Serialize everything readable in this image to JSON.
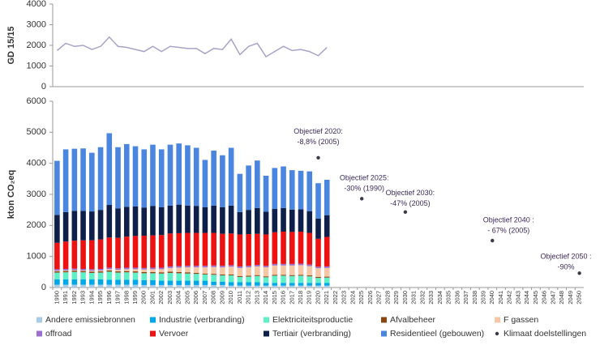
{
  "chart_data": [
    {
      "type": "line",
      "ylabel": "GD 15/15",
      "color": "#a7a3c9",
      "values": [
        1750,
        2100,
        1950,
        2000,
        1800,
        1950,
        2400,
        1950,
        1900,
        1800,
        1700,
        1950,
        1700,
        1950,
        1900,
        1850,
        1850,
        1600,
        1850,
        1800,
        2300,
        1550,
        1950,
        2100,
        1450,
        1700,
        1950,
        1750,
        1800,
        1700,
        1500,
        1900
      ],
      "ylim": [
        0,
        4000
      ],
      "yticks": [
        0,
        1000,
        2000,
        3000,
        4000
      ]
    },
    {
      "type": "bar",
      "stacked": true,
      "ylabel": "kton CO₂eq",
      "categories": [
        "1990",
        "1991",
        "1992",
        "1993",
        "1994",
        "1995",
        "1996",
        "1997",
        "1998",
        "1999",
        "2000",
        "2001",
        "2002",
        "2003",
        "2004",
        "2005",
        "2006",
        "2007",
        "2008",
        "2009",
        "2010",
        "2011",
        "2012",
        "2013",
        "2014",
        "2015",
        "2016",
        "2017",
        "2018",
        "2019",
        "2020",
        "2021",
        "2022",
        "2023",
        "2024",
        "2025",
        "2026",
        "2027",
        "2028",
        "2029",
        "2030",
        "2031",
        "2032",
        "2033",
        "2034",
        "2035",
        "2036",
        "2037",
        "2038",
        "2039",
        "2040",
        "2041",
        "2042",
        "2043",
        "2044",
        "2045",
        "2046",
        "2047",
        "2048",
        "2049",
        "2050"
      ],
      "series": [
        {
          "name": "Andere emissiebronnen",
          "color": "#a9cbe8",
          "values": [
            90,
            90,
            90,
            90,
            90,
            90,
            90,
            90,
            90,
            90,
            80,
            80,
            80,
            80,
            80,
            80,
            80,
            80,
            80,
            80,
            60,
            60,
            60,
            60,
            60,
            60,
            60,
            60,
            60,
            60,
            60,
            60,
            null,
            null,
            null,
            null,
            null,
            null,
            null,
            null,
            null,
            null,
            null,
            null,
            null,
            null,
            null,
            null,
            null,
            null,
            null,
            null,
            null,
            null,
            null,
            null,
            null,
            null,
            null,
            null,
            null
          ]
        },
        {
          "name": "Industrie (verbranding)",
          "color": "#00a8e8",
          "values": [
            170,
            170,
            170,
            170,
            170,
            170,
            160,
            160,
            160,
            160,
            160,
            160,
            140,
            140,
            140,
            140,
            140,
            140,
            110,
            110,
            110,
            110,
            110,
            110,
            90,
            90,
            90,
            90,
            90,
            90,
            90,
            90,
            null,
            null,
            null,
            null,
            null,
            null,
            null,
            null,
            null,
            null,
            null,
            null,
            null,
            null,
            null,
            null,
            null,
            null,
            null,
            null,
            null,
            null,
            null,
            null,
            null,
            null,
            null,
            null,
            null
          ]
        },
        {
          "name": "Elektriciteitsproductie",
          "color": "#5ff0c8",
          "values": [
            220,
            230,
            240,
            230,
            210,
            220,
            260,
            230,
            240,
            230,
            220,
            220,
            230,
            250,
            240,
            230,
            220,
            200,
            220,
            200,
            220,
            170,
            180,
            200,
            180,
            230,
            230,
            220,
            230,
            210,
            160,
            170,
            null,
            null,
            null,
            null,
            null,
            null,
            null,
            null,
            null,
            null,
            null,
            null,
            null,
            null,
            null,
            null,
            null,
            null,
            null,
            null,
            null,
            null,
            null,
            null,
            null,
            null,
            null,
            null,
            null
          ]
        },
        {
          "name": "Afvalbeheer",
          "color": "#8b4513",
          "values": [
            40,
            40,
            40,
            40,
            40,
            40,
            40,
            40,
            40,
            40,
            40,
            40,
            40,
            40,
            40,
            40,
            30,
            30,
            30,
            30,
            30,
            30,
            30,
            30,
            30,
            30,
            30,
            30,
            30,
            30,
            30,
            30,
            null,
            null,
            null,
            null,
            null,
            null,
            null,
            null,
            null,
            null,
            null,
            null,
            null,
            null,
            null,
            null,
            null,
            null,
            null,
            null,
            null,
            null,
            null,
            null,
            null,
            null,
            null,
            null,
            null
          ]
        },
        {
          "name": "F gassen",
          "color": "#f6c7a4",
          "values": [
            20,
            20,
            20,
            20,
            30,
            30,
            40,
            50,
            60,
            70,
            80,
            90,
            100,
            120,
            140,
            160,
            180,
            200,
            220,
            230,
            250,
            260,
            270,
            280,
            290,
            300,
            300,
            310,
            310,
            300,
            280,
            280,
            null,
            null,
            null,
            null,
            null,
            null,
            null,
            null,
            null,
            null,
            null,
            null,
            null,
            null,
            null,
            null,
            null,
            null,
            null,
            null,
            null,
            null,
            null,
            null,
            null,
            null,
            null,
            null,
            null
          ]
        },
        {
          "name": "offroad",
          "color": "#9b6fd0",
          "values": [
            50,
            50,
            50,
            50,
            50,
            50,
            50,
            50,
            50,
            50,
            50,
            50,
            50,
            50,
            50,
            50,
            50,
            50,
            50,
            50,
            50,
            50,
            50,
            50,
            50,
            50,
            50,
            50,
            50,
            50,
            50,
            50,
            null,
            null,
            null,
            null,
            null,
            null,
            null,
            null,
            null,
            null,
            null,
            null,
            null,
            null,
            null,
            null,
            null,
            null,
            null,
            null,
            null,
            null,
            null,
            null,
            null,
            null,
            null,
            null,
            null
          ]
        },
        {
          "name": "Vervoer",
          "color": "#ee1111",
          "values": [
            850,
            880,
            900,
            920,
            930,
            950,
            970,
            980,
            1000,
            1020,
            1040,
            1040,
            1050,
            1060,
            1060,
            1060,
            1060,
            1060,
            1050,
            1030,
            1020,
            1030,
            1020,
            1000,
            1010,
            1020,
            1040,
            1030,
            1030,
            1020,
            900,
            950,
            null,
            null,
            null,
            null,
            null,
            null,
            null,
            null,
            null,
            null,
            null,
            null,
            null,
            null,
            null,
            null,
            null,
            null,
            null,
            null,
            null,
            null,
            null,
            null,
            null,
            null,
            null,
            null,
            null
          ]
        },
        {
          "name": "Tertiair (verbranding)",
          "color": "#0e1f4a",
          "values": [
            900,
            950,
            960,
            950,
            930,
            950,
            1050,
            950,
            960,
            950,
            900,
            950,
            900,
            900,
            920,
            880,
            870,
            830,
            880,
            860,
            900,
            720,
            780,
            830,
            730,
            750,
            760,
            720,
            720,
            700,
            650,
            700,
            null,
            null,
            null,
            null,
            null,
            null,
            null,
            null,
            null,
            null,
            null,
            null,
            null,
            null,
            null,
            null,
            null,
            null,
            null,
            null,
            null,
            null,
            null,
            null,
            null,
            null,
            null,
            null,
            null
          ]
        },
        {
          "name": "Residentieel (gebouwen)",
          "color": "#4a86e0",
          "values": [
            1740,
            2020,
            2000,
            2010,
            1890,
            2020,
            2310,
            1970,
            2020,
            1940,
            1880,
            1970,
            1860,
            1960,
            1970,
            1940,
            1870,
            1520,
            1770,
            1670,
            1860,
            1230,
            1430,
            1530,
            1160,
            1320,
            1340,
            1270,
            1240,
            1280,
            1140,
            1140,
            null,
            null,
            null,
            null,
            null,
            null,
            null,
            null,
            null,
            null,
            null,
            null,
            null,
            null,
            null,
            null,
            null,
            null,
            null,
            null,
            null,
            null,
            null,
            null,
            null,
            null,
            null,
            null,
            null
          ]
        },
        {
          "name": "Klimaat doelstellingen",
          "type": "scatter",
          "color": "#3a3a48",
          "values": [
            null,
            null,
            null,
            null,
            null,
            null,
            null,
            null,
            null,
            null,
            null,
            null,
            null,
            null,
            null,
            null,
            null,
            null,
            null,
            null,
            null,
            null,
            null,
            null,
            null,
            null,
            null,
            null,
            null,
            null,
            4180,
            null,
            null,
            null,
            null,
            2860,
            null,
            null,
            null,
            null,
            2430,
            null,
            null,
            null,
            null,
            null,
            null,
            null,
            null,
            null,
            1510,
            null,
            null,
            null,
            null,
            null,
            null,
            null,
            null,
            null,
            460
          ]
        }
      ],
      "annotations": [
        [
          "Objectief 2020:",
          "-8,8% (2005)"
        ],
        [
          "Objectief 2025:",
          "-30% (1990)"
        ],
        [
          "Objectief 2030:",
          "-47% (2005)"
        ],
        [
          "Objectief 2040 :",
          "- 67% (2005)"
        ],
        [
          "Objectief 2050 :",
          "-90%"
        ]
      ],
      "ylim": [
        0,
        6000
      ],
      "yticks": [
        0,
        1000,
        2000,
        3000,
        4000,
        5000,
        6000
      ]
    }
  ]
}
